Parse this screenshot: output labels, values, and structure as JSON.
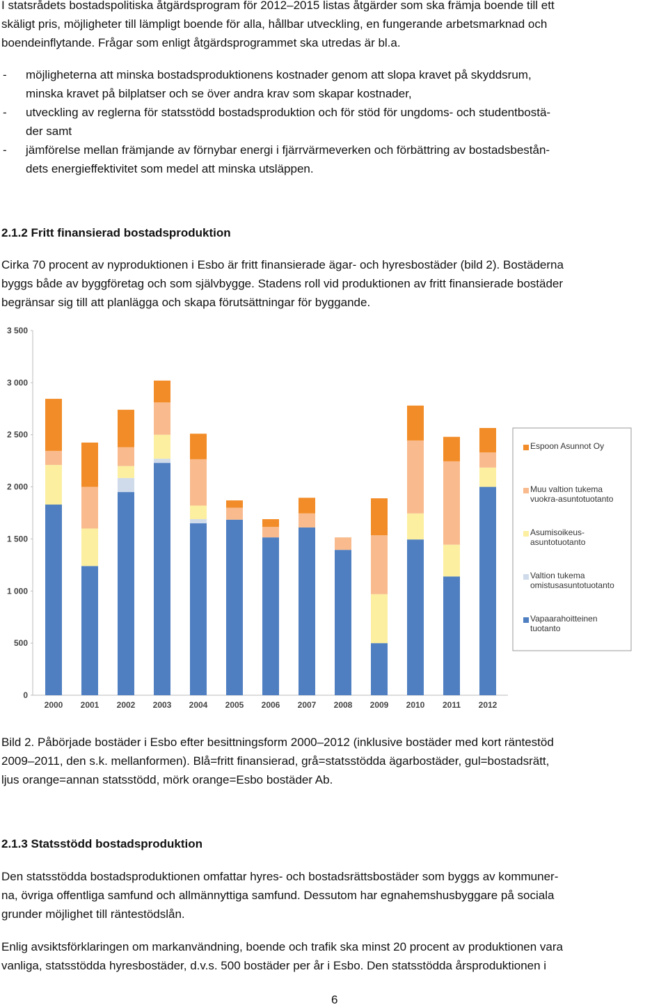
{
  "intro": {
    "lines": [
      "I statsrådets bostadspolitiska åtgärdsprogram för 2012–2015 listas åtgärder som ska främja boende till ett",
      "skäligt pris, möjligheter till lämpligt boende för alla, hållbar utveckling, en fungerande arbetsmarknad och",
      "boendeinflytande. Frågar som enligt åtgärdsprogrammet ska utredas är bl.a."
    ]
  },
  "bullets": [
    {
      "marker": "-",
      "lines": [
        "möjligheterna att minska bostadsproduktionens kostnader genom att slopa kravet på skyddsrum,",
        "minska kravet på bilplatser och se över andra krav som skapar kostnader,"
      ]
    },
    {
      "marker": "-",
      "lines": [
        "utveckling av reglerna för statsstödd bostadsproduktion och för stöd för ungdoms- och studentbostä-",
        "der samt"
      ]
    },
    {
      "marker": "-",
      "lines": [
        "jämförelse mellan främjande av förnybar energi i fjärrvärmeverken och förbättring av bostadsbestån-",
        "dets energieffektivitet som medel att minska utsläppen."
      ]
    }
  ],
  "section_1": {
    "heading": "2.1.2 Fritt finansierad bostadsproduktion",
    "lines": [
      "Cirka 70 procent av nyproduktionen i Esbo är fritt finansierade ägar- och hyresbostäder (bild 2). Bostäderna",
      "byggs både av byggföretag och som självbygge. Stadens roll vid produktionen av fritt finansierade bostäder",
      "begränsar sig till att planlägga och skapa förutsättningar för byggande."
    ]
  },
  "chart_data": {
    "type": "bar",
    "stacked": true,
    "categories": [
      "2000",
      "2001",
      "2002",
      "2003",
      "2004",
      "2005",
      "2006",
      "2007",
      "2008",
      "2009",
      "2010",
      "2011",
      "2012"
    ],
    "series": [
      {
        "name": "Vapaarahoitteinen tuotanto",
        "color": "#4f7fc1",
        "values": [
          1830,
          1240,
          1950,
          2230,
          1650,
          1685,
          1515,
          1610,
          1395,
          500,
          1495,
          1140,
          2000
        ]
      },
      {
        "name": "Valtion tukema omistusasuntotuotanto",
        "color": "#cfdbeb",
        "values": [
          0,
          0,
          135,
          40,
          40,
          0,
          0,
          0,
          0,
          0,
          0,
          0,
          0
        ]
      },
      {
        "name": "Asumisoikeus-asuntotuotanto",
        "color": "#fcefa0",
        "values": [
          380,
          360,
          115,
          230,
          130,
          0,
          0,
          0,
          0,
          470,
          250,
          305,
          185
        ]
      },
      {
        "name": "Muu valtion tukema vuokra-asuntotuotanto",
        "color": "#f9bb8e",
        "values": [
          135,
          400,
          180,
          310,
          445,
          115,
          100,
          135,
          120,
          565,
          700,
          800,
          145
        ]
      },
      {
        "name": "Espoon Asunnot Oy",
        "color": "#f28c28",
        "values": [
          500,
          425,
          360,
          210,
          245,
          70,
          75,
          150,
          0,
          355,
          335,
          235,
          235
        ]
      }
    ],
    "ylim": [
      0,
      3500
    ],
    "yticks": [
      0,
      {
        "value": 500,
        "label": "500"
      },
      {
        "value": 1000,
        "label": "1 000"
      },
      {
        "value": 1500,
        "label": "1 500"
      },
      {
        "value": 2000,
        "label": "2 000"
      },
      {
        "value": 2500,
        "label": "2 500"
      },
      {
        "value": 3000,
        "label": "3 000"
      },
      {
        "value": 3500,
        "label": "3 500"
      }
    ],
    "grid": false,
    "legend": "right"
  },
  "caption": {
    "lines": [
      "Bild 2. Påbörjade bostäder i Esbo efter besittningsform 2000–2012 (inklusive bostäder med kort räntestöd",
      "2009–2011, den s.k. mellanformen). Blå=fritt finansierad, grå=statsstödda ägarbostäder, gul=bostadsrätt,",
      "ljus orange=annan statsstödd, mörk orange=Esbo bostäder Ab."
    ]
  },
  "section_2": {
    "heading": "2.1.3 Statsstödd bostadsproduktion",
    "paragraphs": [
      [
        "Den statsstödda bostadsproduktionen omfattar hyres- och bostadsrättsbostäder som byggs av kommuner-",
        "na, övriga offentliga samfund och allmännyttiga samfund. Dessutom har egnahemshusbyggare på sociala",
        "grunder möjlighet till räntestödslån."
      ],
      [
        "Enlig avsiktsförklaringen om markanvändning, boende och trafik ska minst 20 procent av produktionen vara",
        "vanliga, statsstödda hyresbostäder, d.v.s. 500 bostäder per år i Esbo. Den statsstödda årsproduktionen i"
      ]
    ]
  },
  "page_number": "6"
}
